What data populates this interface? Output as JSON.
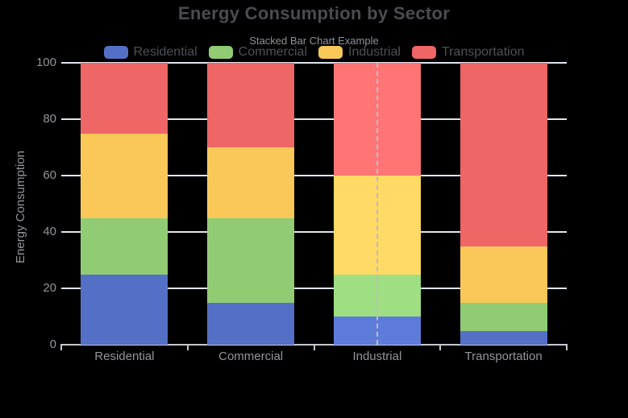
{
  "title": "Energy Consumption by Sector",
  "subtitle": "Stacked Bar Chart Example",
  "legend": {
    "items": [
      {
        "label": "Residential",
        "color": "#5470C6"
      },
      {
        "label": "Commercial",
        "color": "#91CC75"
      },
      {
        "label": "Industrial",
        "color": "#FAC858"
      },
      {
        "label": "Transportation",
        "color": "#EE6666"
      }
    ]
  },
  "y_axis": {
    "label": "Energy Consumption",
    "ticks": [
      0,
      20,
      40,
      60,
      80,
      100
    ],
    "max": 100
  },
  "x_axis": {
    "categories": [
      "Residential",
      "Commercial",
      "Industrial",
      "Transportation"
    ]
  },
  "chart_data": {
    "type": "bar",
    "stacked": true,
    "title": "Energy Consumption by Sector",
    "subtitle": "Stacked Bar Chart Example",
    "categories": [
      "Residential",
      "Commercial",
      "Industrial",
      "Transportation"
    ],
    "series": [
      {
        "name": "Residential",
        "color": "#5470C6",
        "highlight_color": "#5D7CDA",
        "values": [
          25,
          15,
          10,
          5
        ]
      },
      {
        "name": "Commercial",
        "color": "#91CC75",
        "highlight_color": "#9FDE82",
        "values": [
          20,
          30,
          15,
          10
        ]
      },
      {
        "name": "Industrial",
        "color": "#FAC858",
        "highlight_color": "#FFD965",
        "values": [
          30,
          25,
          35,
          20
        ]
      },
      {
        "name": "Transportation",
        "color": "#EE6666",
        "highlight_color": "#FF7575",
        "values": [
          25,
          30,
          40,
          65
        ]
      }
    ],
    "stack_totals": [
      100,
      100,
      100,
      100
    ],
    "xlabel": "",
    "ylabel": "Energy Consumption",
    "ylim": [
      0,
      100
    ],
    "grid": true,
    "legend_position": "top",
    "highlighted_category": "Industrial",
    "hover_line": {
      "style": "dashed",
      "color": "#b9bdc4"
    }
  },
  "colors": {
    "background": "#000000",
    "title_text": "#4b4c51",
    "subtitle_text": "#8f929b",
    "legend_text": "#4f5055",
    "axis_label_text": "#95959b",
    "gridline": "#e0e6f1",
    "axis_line": "#c4c8d0"
  }
}
